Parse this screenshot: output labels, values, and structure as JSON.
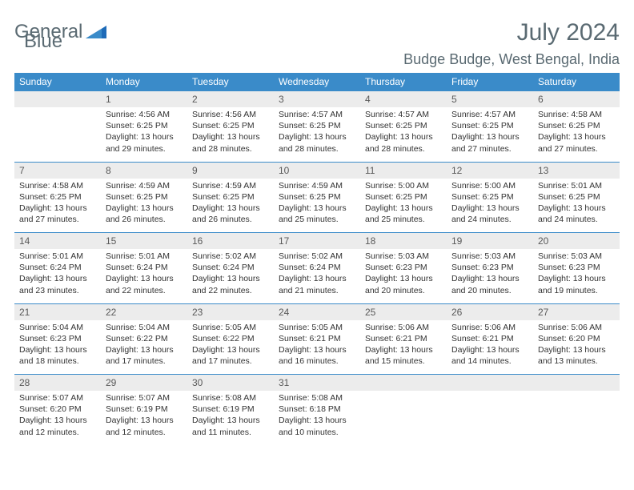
{
  "colors": {
    "header_bg": "#3a8bc9",
    "header_text": "#ffffff",
    "daynum_bg": "#ececec",
    "daynum_text": "#595959",
    "body_text": "#333333",
    "title_text": "#5a6a72",
    "row_border": "#3a8bc9",
    "logo_blue": "#1e6bb8"
  },
  "logo": {
    "word1": "General",
    "word2": "Blue"
  },
  "title": "July 2024",
  "location": "Budge Budge, West Bengal, India",
  "weekdays": [
    "Sunday",
    "Monday",
    "Tuesday",
    "Wednesday",
    "Thursday",
    "Friday",
    "Saturday"
  ],
  "weeks": [
    {
      "nums": [
        "",
        "1",
        "2",
        "3",
        "4",
        "5",
        "6"
      ],
      "cells": [
        null,
        {
          "sr": "Sunrise: 4:56 AM",
          "ss": "Sunset: 6:25 PM",
          "dl1": "Daylight: 13 hours",
          "dl2": "and 29 minutes."
        },
        {
          "sr": "Sunrise: 4:56 AM",
          "ss": "Sunset: 6:25 PM",
          "dl1": "Daylight: 13 hours",
          "dl2": "and 28 minutes."
        },
        {
          "sr": "Sunrise: 4:57 AM",
          "ss": "Sunset: 6:25 PM",
          "dl1": "Daylight: 13 hours",
          "dl2": "and 28 minutes."
        },
        {
          "sr": "Sunrise: 4:57 AM",
          "ss": "Sunset: 6:25 PM",
          "dl1": "Daylight: 13 hours",
          "dl2": "and 28 minutes."
        },
        {
          "sr": "Sunrise: 4:57 AM",
          "ss": "Sunset: 6:25 PM",
          "dl1": "Daylight: 13 hours",
          "dl2": "and 27 minutes."
        },
        {
          "sr": "Sunrise: 4:58 AM",
          "ss": "Sunset: 6:25 PM",
          "dl1": "Daylight: 13 hours",
          "dl2": "and 27 minutes."
        }
      ]
    },
    {
      "nums": [
        "7",
        "8",
        "9",
        "10",
        "11",
        "12",
        "13"
      ],
      "cells": [
        {
          "sr": "Sunrise: 4:58 AM",
          "ss": "Sunset: 6:25 PM",
          "dl1": "Daylight: 13 hours",
          "dl2": "and 27 minutes."
        },
        {
          "sr": "Sunrise: 4:59 AM",
          "ss": "Sunset: 6:25 PM",
          "dl1": "Daylight: 13 hours",
          "dl2": "and 26 minutes."
        },
        {
          "sr": "Sunrise: 4:59 AM",
          "ss": "Sunset: 6:25 PM",
          "dl1": "Daylight: 13 hours",
          "dl2": "and 26 minutes."
        },
        {
          "sr": "Sunrise: 4:59 AM",
          "ss": "Sunset: 6:25 PM",
          "dl1": "Daylight: 13 hours",
          "dl2": "and 25 minutes."
        },
        {
          "sr": "Sunrise: 5:00 AM",
          "ss": "Sunset: 6:25 PM",
          "dl1": "Daylight: 13 hours",
          "dl2": "and 25 minutes."
        },
        {
          "sr": "Sunrise: 5:00 AM",
          "ss": "Sunset: 6:25 PM",
          "dl1": "Daylight: 13 hours",
          "dl2": "and 24 minutes."
        },
        {
          "sr": "Sunrise: 5:01 AM",
          "ss": "Sunset: 6:25 PM",
          "dl1": "Daylight: 13 hours",
          "dl2": "and 24 minutes."
        }
      ]
    },
    {
      "nums": [
        "14",
        "15",
        "16",
        "17",
        "18",
        "19",
        "20"
      ],
      "cells": [
        {
          "sr": "Sunrise: 5:01 AM",
          "ss": "Sunset: 6:24 PM",
          "dl1": "Daylight: 13 hours",
          "dl2": "and 23 minutes."
        },
        {
          "sr": "Sunrise: 5:01 AM",
          "ss": "Sunset: 6:24 PM",
          "dl1": "Daylight: 13 hours",
          "dl2": "and 22 minutes."
        },
        {
          "sr": "Sunrise: 5:02 AM",
          "ss": "Sunset: 6:24 PM",
          "dl1": "Daylight: 13 hours",
          "dl2": "and 22 minutes."
        },
        {
          "sr": "Sunrise: 5:02 AM",
          "ss": "Sunset: 6:24 PM",
          "dl1": "Daylight: 13 hours",
          "dl2": "and 21 minutes."
        },
        {
          "sr": "Sunrise: 5:03 AM",
          "ss": "Sunset: 6:23 PM",
          "dl1": "Daylight: 13 hours",
          "dl2": "and 20 minutes."
        },
        {
          "sr": "Sunrise: 5:03 AM",
          "ss": "Sunset: 6:23 PM",
          "dl1": "Daylight: 13 hours",
          "dl2": "and 20 minutes."
        },
        {
          "sr": "Sunrise: 5:03 AM",
          "ss": "Sunset: 6:23 PM",
          "dl1": "Daylight: 13 hours",
          "dl2": "and 19 minutes."
        }
      ]
    },
    {
      "nums": [
        "21",
        "22",
        "23",
        "24",
        "25",
        "26",
        "27"
      ],
      "cells": [
        {
          "sr": "Sunrise: 5:04 AM",
          "ss": "Sunset: 6:23 PM",
          "dl1": "Daylight: 13 hours",
          "dl2": "and 18 minutes."
        },
        {
          "sr": "Sunrise: 5:04 AM",
          "ss": "Sunset: 6:22 PM",
          "dl1": "Daylight: 13 hours",
          "dl2": "and 17 minutes."
        },
        {
          "sr": "Sunrise: 5:05 AM",
          "ss": "Sunset: 6:22 PM",
          "dl1": "Daylight: 13 hours",
          "dl2": "and 17 minutes."
        },
        {
          "sr": "Sunrise: 5:05 AM",
          "ss": "Sunset: 6:21 PM",
          "dl1": "Daylight: 13 hours",
          "dl2": "and 16 minutes."
        },
        {
          "sr": "Sunrise: 5:06 AM",
          "ss": "Sunset: 6:21 PM",
          "dl1": "Daylight: 13 hours",
          "dl2": "and 15 minutes."
        },
        {
          "sr": "Sunrise: 5:06 AM",
          "ss": "Sunset: 6:21 PM",
          "dl1": "Daylight: 13 hours",
          "dl2": "and 14 minutes."
        },
        {
          "sr": "Sunrise: 5:06 AM",
          "ss": "Sunset: 6:20 PM",
          "dl1": "Daylight: 13 hours",
          "dl2": "and 13 minutes."
        }
      ]
    },
    {
      "nums": [
        "28",
        "29",
        "30",
        "31",
        "",
        "",
        ""
      ],
      "cells": [
        {
          "sr": "Sunrise: 5:07 AM",
          "ss": "Sunset: 6:20 PM",
          "dl1": "Daylight: 13 hours",
          "dl2": "and 12 minutes."
        },
        {
          "sr": "Sunrise: 5:07 AM",
          "ss": "Sunset: 6:19 PM",
          "dl1": "Daylight: 13 hours",
          "dl2": "and 12 minutes."
        },
        {
          "sr": "Sunrise: 5:08 AM",
          "ss": "Sunset: 6:19 PM",
          "dl1": "Daylight: 13 hours",
          "dl2": "and 11 minutes."
        },
        {
          "sr": "Sunrise: 5:08 AM",
          "ss": "Sunset: 6:18 PM",
          "dl1": "Daylight: 13 hours",
          "dl2": "and 10 minutes."
        },
        null,
        null,
        null
      ]
    }
  ]
}
